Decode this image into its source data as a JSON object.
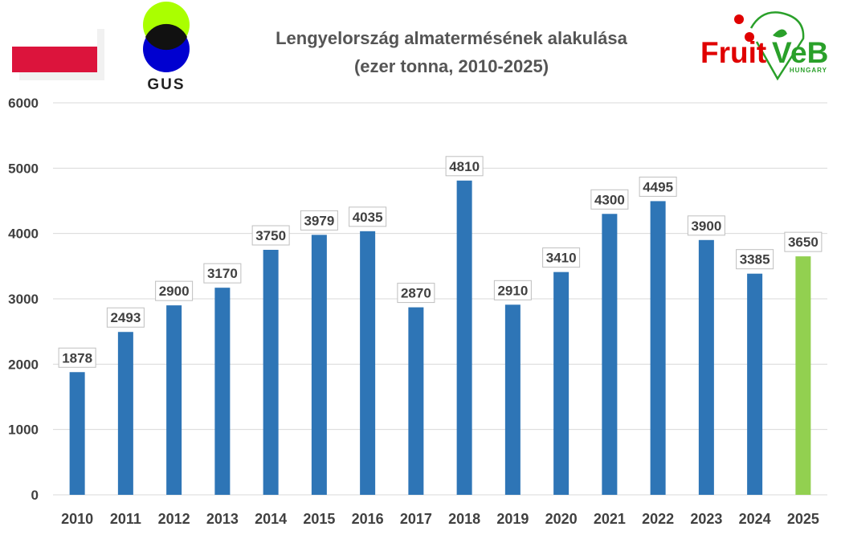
{
  "header": {
    "title_line1": "Lengyelország almatermésének alakulása",
    "title_line2": "(ezer tonna, 2010-2025)"
  },
  "logos": {
    "gus_text": "GUS",
    "fruitveb_text1": "Fruit",
    "fruitveb_text2": "eB",
    "fruitveb_sub": "HUNGARY"
  },
  "colors": {
    "bar_default": "#2e75b6",
    "bar_highlight": "#92d050",
    "flag_white": "#ffffff",
    "flag_red": "#dc143c",
    "gus_green": "#aaff00",
    "gus_blue": "#0000d0",
    "fruitveb_red": "#e00000",
    "fruitveb_green": "#2aa02a"
  },
  "chart_data": {
    "type": "bar",
    "title": "Lengyelország almatermésének alakulása (ezer tonna, 2010-2025)",
    "categories": [
      "2010",
      "2011",
      "2012",
      "2013",
      "2014",
      "2015",
      "2016",
      "2017",
      "2018",
      "2019",
      "2020",
      "2021",
      "2022",
      "2023",
      "2024",
      "2025"
    ],
    "values": [
      1878,
      2493,
      2900,
      3170,
      3750,
      3979,
      4035,
      2870,
      4810,
      2910,
      3410,
      4300,
      4495,
      3900,
      3385,
      3650
    ],
    "highlight_category": "2025",
    "ylim": [
      0,
      6000
    ],
    "yticks": [
      0,
      1000,
      2000,
      3000,
      4000,
      5000,
      6000
    ],
    "grid": true,
    "legend": "none",
    "xlabel": "",
    "ylabel": ""
  }
}
